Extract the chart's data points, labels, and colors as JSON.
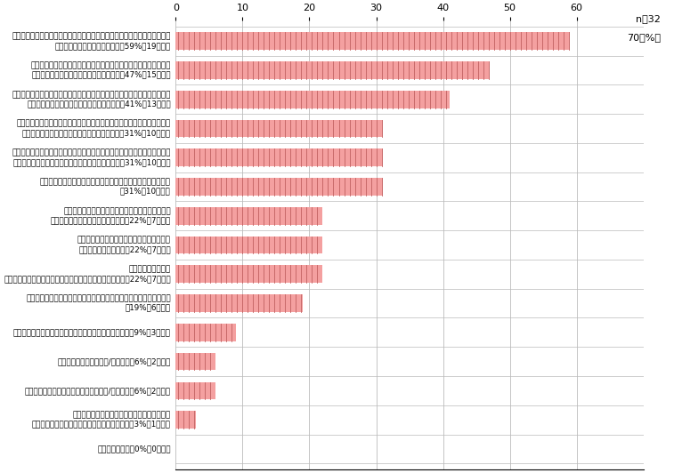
{
  "categories": [
    "生活支援通信ロボット（人間型のロボットで、ネットの情報を活用しながら\n家事手伝い等をしてくれる）　（59%、19回答）",
    "全自動カー（周囲の車や信号などと通信しながら、完全自動運転で\n目的地まで連れて行ってくれる自動車）　（47%、15回答）",
    "人工知能通信端末（スマホやタブレットの中に人工知能のコンシェルジュが\nいてあなたのリクエストに応えてくれる）　（41%、13回答）",
    "自動介護ベッド（健康状態をチェックしながら、自分ではできないことを\n上手にサポートしてくれるロボットベッド）　（31%、10回答）",
    "装着型治癒ロボット（体に装着して、病院等からの指示にしたがって歩行や\nリハビリ運動などを手助けしてくれるロボット）　（31%、10回答）",
    "立体テレビ電話（そこに相手がいるような感覚で話ができる）\n（31%、10回答）",
    "立体表示タブレット端末（ネット上のコンテンツが\nホログラム等で立体表示される）　（22%、7回答）",
    "音声ですべての操作や指示ができる携帯電話\n（スマートフォン）　（22%、7回答）",
    "作業用通信ロボット\n（あなたの体の動きに合わせて作業用ロボットが動く）　（22%、7回答）",
    "体内埋め込み型通信機器（端末を何も持たずに通話や検索ができる）\n（19%、6回答）",
    "ヘッドセット（イヤフォンマイク）型の超軽量携帯電話（9%、3回答）",
    "腕時計型携帯テレビ電話/情報端末（6%、2回答）",
    "メガネ型（ゴーグル型）携帯テレビ電話/情報端末（6%、2回答）",
    "ペット型通信ロボット（ペット型ロボットで、\nあなたと遊んだり留守番などをしてくれる）　（3%、1回答）",
    "その他の通信機（0%、0回答）"
  ],
  "values": [
    59,
    47,
    41,
    31,
    31,
    31,
    22,
    22,
    22,
    19,
    9,
    6,
    6,
    3,
    0
  ],
  "bar_color": "#f4a0a0",
  "bar_edgecolor": "#e08080",
  "hatch_color": "#c06060",
  "xlim_max": 70,
  "xticks": [
    0,
    10,
    20,
    30,
    40,
    50,
    60
  ],
  "grid_color": "#bbbbbb",
  "background_color": "#ffffff",
  "bar_height": 0.6,
  "figsize": [
    7.57,
    5.32
  ],
  "dpi": 100,
  "label_fontsize": 6.3,
  "tick_fontsize": 8.0,
  "n_label": "n＝32",
  "pct_label": "70（%）"
}
